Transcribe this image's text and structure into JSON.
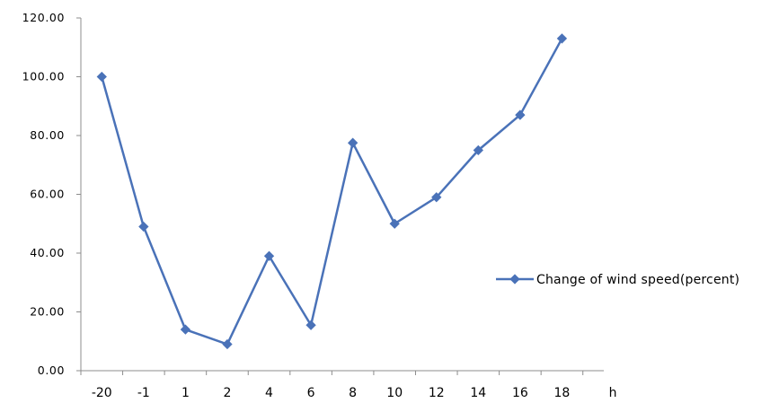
{
  "chart_data": {
    "type": "line",
    "categories": [
      "-20",
      "-1",
      "1",
      "2",
      "4",
      "6",
      "8",
      "10",
      "12",
      "14",
      "16",
      "18"
    ],
    "x_unit_label": "h",
    "series": [
      {
        "name": "Change of wind speed(percent)",
        "values": [
          100.0,
          49.0,
          14.0,
          9.0,
          39.0,
          15.5,
          77.5,
          50.0,
          59.0,
          75.0,
          87.0,
          113.0
        ]
      }
    ],
    "y_tick_labels": [
      "0.00",
      "20.00",
      "40.00",
      "60.00",
      "80.00",
      "100.00",
      "120.00"
    ],
    "ylim": [
      0,
      120
    ],
    "grid": false,
    "legend_position": "right",
    "colors": {
      "series": "#4a72b8"
    }
  }
}
